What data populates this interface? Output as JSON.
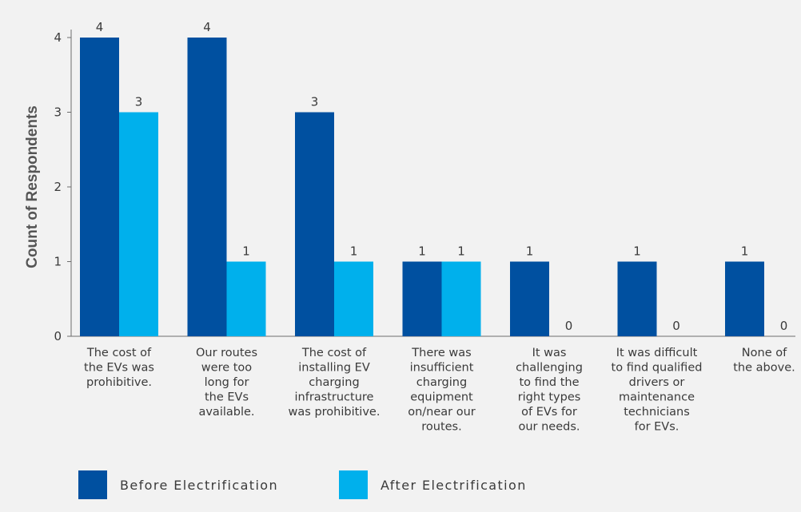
{
  "colors": {
    "before": "#0050a0",
    "after": "#00b0ec",
    "axis": "#6d6d6d",
    "text": "#3a3a3a",
    "background": "#f2f2f2"
  },
  "legend": {
    "before_label": "Before Electrification",
    "after_label": "After Electrification"
  },
  "chart_data": {
    "type": "bar",
    "title": "",
    "xlabel": "",
    "ylabel": "Count of Respondents",
    "ylim": [
      0,
      4
    ],
    "yticks": [
      0,
      1,
      2,
      3,
      4
    ],
    "grid": false,
    "legend_position": "bottom-left",
    "categories": [
      [
        "The cost of",
        "the EVs was",
        "prohibitive."
      ],
      [
        "Our routes",
        "were too",
        "long for",
        "the EVs",
        "available."
      ],
      [
        "The cost of",
        "installing EV",
        "charging",
        "infrastructure",
        "was prohibitive."
      ],
      [
        "There was",
        "insufficient",
        "charging",
        "equipment",
        "on/near our",
        "routes."
      ],
      [
        "It was",
        "challenging",
        "to find the",
        "right types",
        "of EVs for",
        "our needs."
      ],
      [
        "It was difficult",
        "to find qualified",
        "drivers or",
        "maintenance",
        "technicians",
        "for EVs."
      ],
      [
        "None of",
        "the above."
      ]
    ],
    "series": [
      {
        "name": "Before Electrification",
        "values": [
          4,
          4,
          3,
          1,
          1,
          1,
          1
        ]
      },
      {
        "name": "After Electrification",
        "values": [
          3,
          1,
          1,
          1,
          0,
          0,
          0
        ]
      }
    ]
  }
}
